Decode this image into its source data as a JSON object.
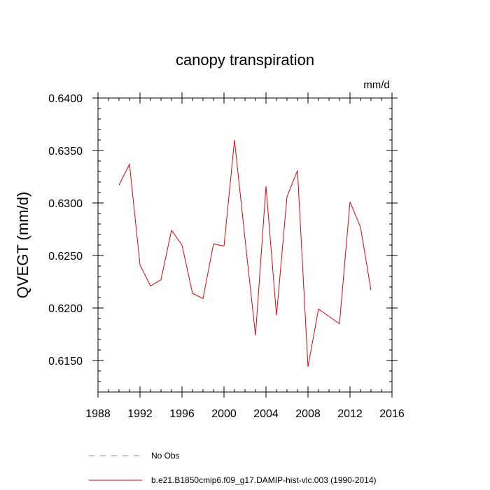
{
  "chart_data": {
    "type": "line",
    "title": "canopy transpiration",
    "units": "mm/d",
    "xlabel": "",
    "ylabel": "QVEGT  (mm/d)",
    "xlim": [
      1988,
      2016
    ],
    "ylim": [
      0.612,
      0.64
    ],
    "x_ticks": [
      1988,
      1992,
      1996,
      2000,
      2004,
      2008,
      2012,
      2016
    ],
    "x_tick_labels": [
      "1988",
      "1992",
      "1996",
      "2000",
      "2004",
      "2008",
      "2012",
      "2016"
    ],
    "y_ticks": [
      0.615,
      0.62,
      0.625,
      0.63,
      0.635,
      0.64
    ],
    "y_tick_labels": [
      "0.6150",
      "0.6200",
      "0.6250",
      "0.6300",
      "0.6350",
      "0.6400"
    ],
    "grid": false,
    "legend_position": "bottom",
    "legend": [
      {
        "label": "No Obs",
        "color": "#8a8ae6",
        "style": "dashed"
      },
      {
        "label": "b.e21.B1850cmip6.f09_g17.DAMIP-hist-vlc.003 (1990-2014)",
        "color": "#e8000b",
        "style": "solid"
      }
    ],
    "series": [
      {
        "name": "b.e21.B1850cmip6.f09_g17.DAMIP-hist-vlc.003 (1990-2014)",
        "color": "#e8000b",
        "x": [
          1990,
          1991,
          1992,
          1993,
          1994,
          1995,
          1996,
          1997,
          1998,
          1999,
          2000,
          2001,
          2002,
          2003,
          2004,
          2005,
          2006,
          2007,
          2008,
          2009,
          2010,
          2011,
          2012,
          2013,
          2014
        ],
        "y": [
          0.6317,
          0.6337,
          0.6241,
          0.6221,
          0.6227,
          0.6274,
          0.626,
          0.6214,
          0.6209,
          0.6261,
          0.6259,
          0.636,
          0.6266,
          0.6174,
          0.6316,
          0.6193,
          0.6306,
          0.6331,
          0.6144,
          0.6199,
          0.6192,
          0.6185,
          0.6301,
          0.6277,
          0.6217
        ]
      }
    ]
  }
}
